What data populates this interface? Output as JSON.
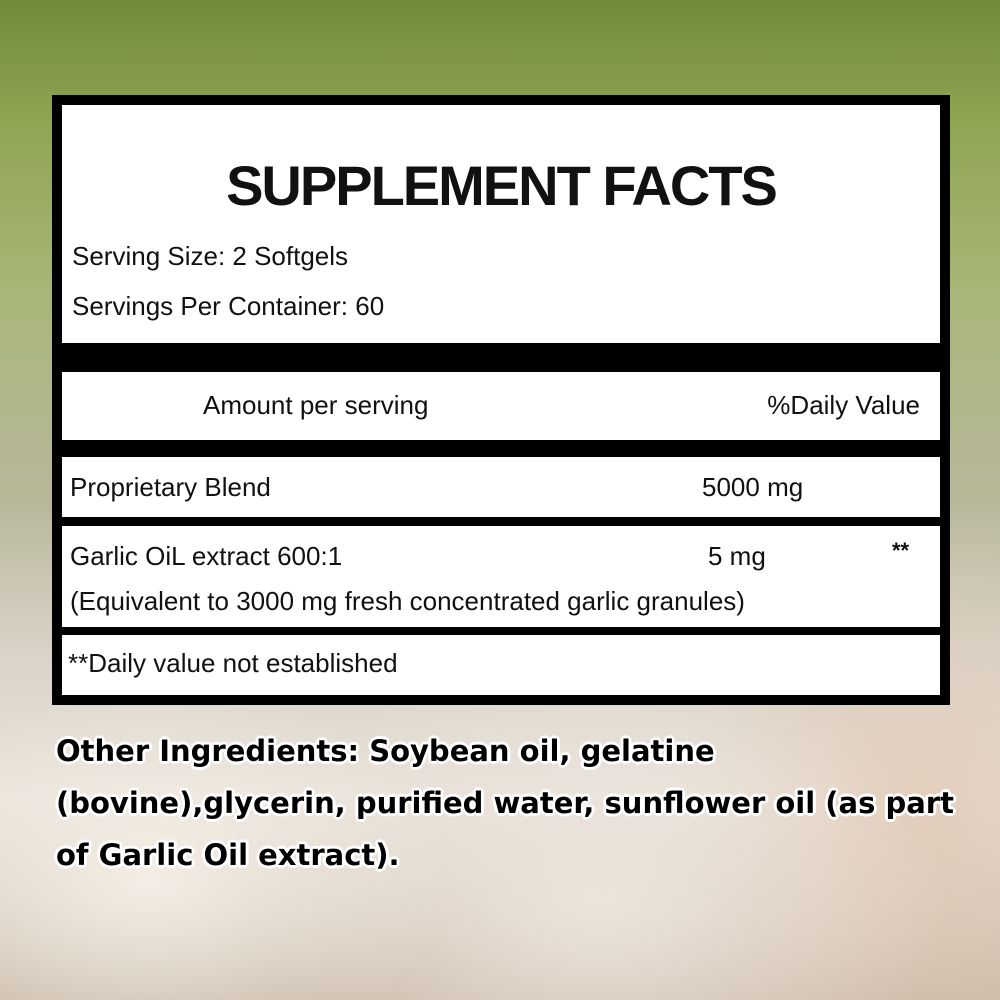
{
  "title": "SUPPLEMENT FACTS",
  "serving_size": "Serving Size: 2 Softgels",
  "servings_per_container": "Servings Per Container: 60",
  "header": {
    "amount": "Amount per serving",
    "daily_value": "%Daily Value"
  },
  "rows": [
    {
      "name": "Proprietary Blend",
      "amount": "5000 mg",
      "dv": ""
    },
    {
      "name": "Garlic OiL extract 600:1",
      "amount": "5 mg",
      "dv": "**",
      "note": "(Equivalent to 3000 mg fresh concentrated garlic granules)"
    }
  ],
  "footnote": "**Daily value not established",
  "other_ingredients": "Other Ingredients: Soybean oil, gelatine (bovine),glycerin, purified water, sunflower oil (as part of Garlic Oil extract)."
}
